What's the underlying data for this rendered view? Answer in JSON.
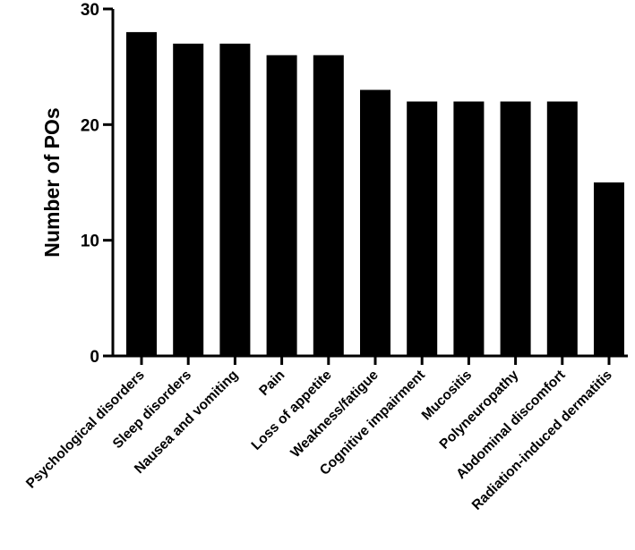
{
  "chart_data": {
    "type": "bar",
    "title": "",
    "xlabel": "",
    "ylabel": "Number of POs",
    "ylim": [
      0,
      30
    ],
    "yticks": [
      0,
      10,
      20,
      30
    ],
    "grid": false,
    "legend": "none",
    "categories": [
      "Psychological disorders",
      "Sleep disorders",
      "Nausea and vomiting",
      "Pain",
      "Loss of appetite",
      "Weakness/fatigue",
      "Cognitive impairment",
      "Mucositis",
      "Polyneuropathy",
      "Abdominal discomfort",
      "Radiation-induced dermatitis"
    ],
    "values": [
      28,
      27,
      27,
      26,
      26,
      23,
      22,
      22,
      22,
      22,
      15
    ],
    "bar_color": "#000000"
  }
}
